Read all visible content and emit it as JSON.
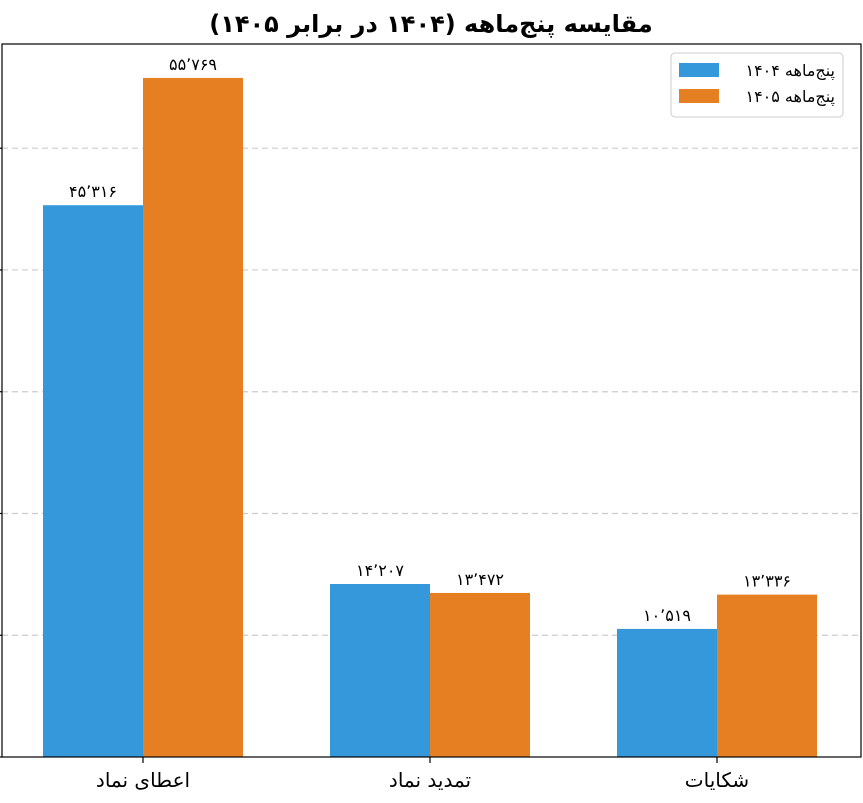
{
  "chart_data": {
    "type": "bar",
    "title": "مقایسه پنج‌ماهه (۱۴۰۴ در برابر ۱۴۰۵)",
    "categories": [
      "اعطای نماد",
      "تمدید نماد",
      "شکایات"
    ],
    "series": [
      {
        "name": "پنج‌ماهه ۱۴۰۴",
        "color": "#3498db",
        "values": [
          45316,
          14207,
          10519
        ],
        "labels": [
          "۴۵٬۳۱۶",
          "۱۴٬۲۰۷",
          "۱۰٬۵۱۹"
        ]
      },
      {
        "name": "پنج‌ماهه ۱۴۰۵",
        "color": "#e67e22",
        "values": [
          55769,
          13472,
          13336
        ],
        "labels": [
          "۵۵٬۷۶۹",
          "۱۳٬۴۷۲",
          "۱۳٬۳۳۶"
        ]
      }
    ],
    "ylim": [
      0,
      58557
    ],
    "yticks": [
      0,
      10000,
      20000,
      30000,
      40000,
      50000
    ],
    "ytick_labels_visible": false,
    "grid": "y-dashed",
    "legend_position": "top-right",
    "xlabel": "",
    "ylabel": ""
  }
}
